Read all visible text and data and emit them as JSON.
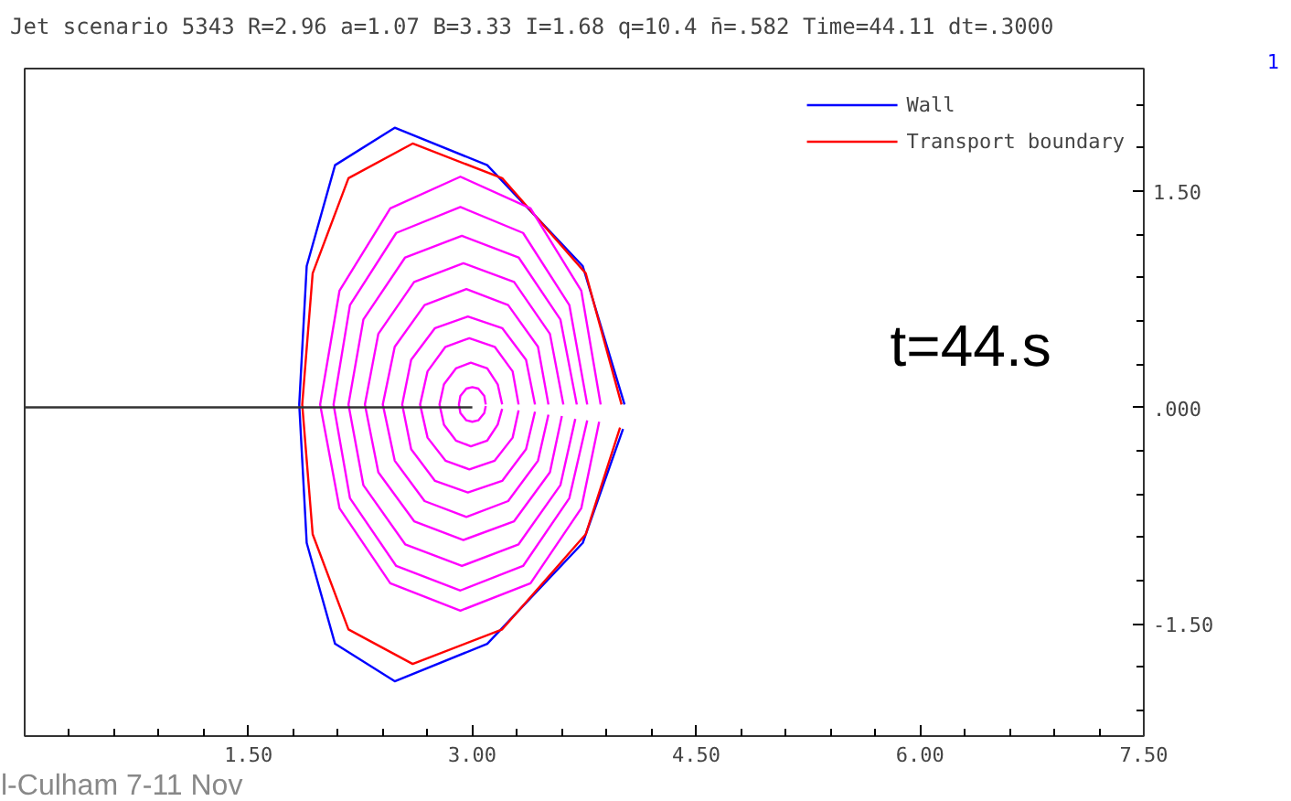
{
  "chart_data": {
    "type": "line",
    "title": "Jet scenario  5343 R=2.96 a=1.07 B=3.33 I=1.68 q=10.4 n̄=.582 Time=44.11 dt=.3000",
    "annotations": [
      "t=44.s",
      "1",
      "l-Culham 7-11 Nov"
    ],
    "xlim": [
      0,
      7.5
    ],
    "ylim": [
      -2.28,
      2.35
    ],
    "xticks": [
      {
        "value": 0.3,
        "label": null
      },
      {
        "value": 0.6,
        "label": null
      },
      {
        "value": 0.9,
        "label": null
      },
      {
        "value": 1.2,
        "label": null
      },
      {
        "value": 1.5,
        "label": "1.50"
      },
      {
        "value": 1.8,
        "label": null
      },
      {
        "value": 2.1,
        "label": null
      },
      {
        "value": 2.4,
        "label": null
      },
      {
        "value": 2.7,
        "label": null
      },
      {
        "value": 3.0,
        "label": "3.00"
      },
      {
        "value": 3.3,
        "label": null
      },
      {
        "value": 3.6,
        "label": null
      },
      {
        "value": 3.9,
        "label": null
      },
      {
        "value": 4.2,
        "label": null
      },
      {
        "value": 4.5,
        "label": "4.50"
      },
      {
        "value": 4.8,
        "label": null
      },
      {
        "value": 5.1,
        "label": null
      },
      {
        "value": 5.4,
        "label": null
      },
      {
        "value": 5.7,
        "label": null
      },
      {
        "value": 6.0,
        "label": "6.00"
      },
      {
        "value": 6.3,
        "label": null
      },
      {
        "value": 6.6,
        "label": null
      },
      {
        "value": 6.9,
        "label": null
      },
      {
        "value": 7.2,
        "label": null
      },
      {
        "value": 7.5,
        "label": "7.50"
      }
    ],
    "yticks": [
      {
        "value": -2.1,
        "label": null
      },
      {
        "value": -1.8,
        "label": null
      },
      {
        "value": -1.5,
        "label": "-1.50"
      },
      {
        "value": -1.2,
        "label": null
      },
      {
        "value": -0.9,
        "label": null
      },
      {
        "value": -0.6,
        "label": null
      },
      {
        "value": -0.3,
        "label": null
      },
      {
        "value": 0,
        "label": ".000"
      },
      {
        "value": 0.3,
        "label": null
      },
      {
        "value": 0.6,
        "label": null
      },
      {
        "value": 0.9,
        "label": null
      },
      {
        "value": 1.2,
        "label": null
      },
      {
        "value": 1.5,
        "label": "1.50"
      },
      {
        "value": 1.8,
        "label": null
      },
      {
        "value": 2.1,
        "label": null
      }
    ],
    "grid": false,
    "legend": "top right",
    "series": [
      {
        "name": "Wall",
        "color": "#0000ff",
        "x": [
          4.02,
          3.74,
          3.1,
          2.48,
          2.08,
          1.89,
          1.84,
          1.89,
          2.08,
          2.48,
          3.1,
          3.74,
          4.01
        ],
        "values": [
          0.02,
          0.98,
          1.68,
          1.94,
          1.68,
          0.98,
          0.02,
          -0.94,
          -1.64,
          -1.9,
          -1.64,
          -0.94,
          -0.15
        ]
      },
      {
        "name": "Transport boundary",
        "color": "#ff0000",
        "x": [
          4.0,
          3.76,
          3.2,
          2.6,
          2.17,
          1.93,
          1.86,
          1.93,
          2.17,
          2.6,
          3.2,
          3.76,
          3.99
        ],
        "values": [
          0.02,
          0.93,
          1.59,
          1.83,
          1.59,
          0.93,
          0.02,
          -0.88,
          -1.54,
          -1.78,
          -1.54,
          -0.88,
          -0.14
        ]
      },
      {
        "color": "#ff00ff",
        "x": [
          3.09,
          3.08,
          3.04,
          3.0,
          2.96,
          2.92,
          2.91,
          2.92,
          2.96,
          3.0,
          3.04,
          3.08,
          3.09
        ],
        "values": [
          0.02,
          0.08,
          0.13,
          0.14,
          0.13,
          0.08,
          0.02,
          -0.04,
          -0.09,
          -0.1,
          -0.09,
          -0.04,
          0.01
        ]
      },
      {
        "color": "#ff00ff",
        "x": [
          3.2,
          3.17,
          3.1,
          2.99,
          2.89,
          2.81,
          2.78,
          2.81,
          2.89,
          2.99,
          3.1,
          3.17,
          3.2
        ],
        "values": [
          0.02,
          0.16,
          0.27,
          0.31,
          0.27,
          0.16,
          0.02,
          -0.12,
          -0.23,
          -0.27,
          -0.23,
          -0.12,
          -0.01
        ]
      },
      {
        "color": "#ff00ff",
        "x": [
          3.31,
          3.27,
          3.15,
          2.98,
          2.82,
          2.7,
          2.65,
          2.7,
          2.82,
          2.98,
          3.15,
          3.27,
          3.31
        ],
        "values": [
          0.02,
          0.25,
          0.42,
          0.48,
          0.42,
          0.25,
          0.02,
          -0.21,
          -0.37,
          -0.43,
          -0.37,
          -0.21,
          -0.02
        ]
      },
      {
        "color": "#ff00ff",
        "x": [
          3.42,
          3.36,
          3.2,
          2.97,
          2.75,
          2.59,
          2.53,
          2.59,
          2.75,
          2.97,
          3.2,
          3.36,
          3.42
        ],
        "values": [
          0.02,
          0.33,
          0.55,
          0.63,
          0.55,
          0.33,
          0.02,
          -0.29,
          -0.51,
          -0.59,
          -0.51,
          -0.29,
          -0.03
        ]
      },
      {
        "color": "#ff00ff",
        "x": [
          3.51,
          3.44,
          3.24,
          2.96,
          2.68,
          2.48,
          2.4,
          2.48,
          2.68,
          2.96,
          3.24,
          3.44,
          3.51
        ],
        "values": [
          0.02,
          0.42,
          0.71,
          0.82,
          0.71,
          0.42,
          0.02,
          -0.37,
          -0.65,
          -0.76,
          -0.65,
          -0.37,
          -0.05
        ]
      },
      {
        "color": "#ff00ff",
        "x": [
          3.61,
          3.52,
          3.28,
          2.94,
          2.61,
          2.37,
          2.28,
          2.37,
          2.61,
          2.94,
          3.28,
          3.52,
          3.6
        ],
        "values": [
          0.02,
          0.51,
          0.87,
          1.0,
          0.87,
          0.51,
          0.02,
          -0.45,
          -0.79,
          -0.92,
          -0.79,
          -0.45,
          -0.06
        ]
      },
      {
        "color": "#ff00ff",
        "x": [
          3.7,
          3.59,
          3.31,
          2.93,
          2.55,
          2.27,
          2.17,
          2.27,
          2.55,
          2.93,
          3.31,
          3.59,
          3.69
        ],
        "values": [
          0.02,
          0.61,
          1.04,
          1.19,
          1.04,
          0.61,
          0.02,
          -0.54,
          -0.95,
          -1.1,
          -0.95,
          -0.54,
          -0.08
        ]
      },
      {
        "color": "#ff00ff",
        "x": [
          3.77,
          3.65,
          3.34,
          2.92,
          2.49,
          2.18,
          2.07,
          2.18,
          2.49,
          2.92,
          3.34,
          3.65,
          3.77
        ],
        "values": [
          0.02,
          0.71,
          1.21,
          1.39,
          1.21,
          0.71,
          0.02,
          -0.63,
          -1.1,
          -1.27,
          -1.1,
          -0.63,
          -0.09
        ]
      },
      {
        "color": "#ff00ff",
        "x": [
          3.86,
          3.73,
          3.39,
          2.92,
          2.45,
          2.11,
          1.98,
          2.11,
          2.45,
          2.92,
          3.39,
          3.73,
          3.85
        ],
        "values": [
          0.02,
          0.81,
          1.38,
          1.6,
          1.38,
          0.81,
          0.02,
          -0.7,
          -1.22,
          -1.41,
          -1.22,
          -0.7,
          -0.1
        ]
      },
      {
        "color": "#333333",
        "x": [
          0,
          3.0
        ],
        "values": [
          0,
          0
        ]
      }
    ]
  }
}
